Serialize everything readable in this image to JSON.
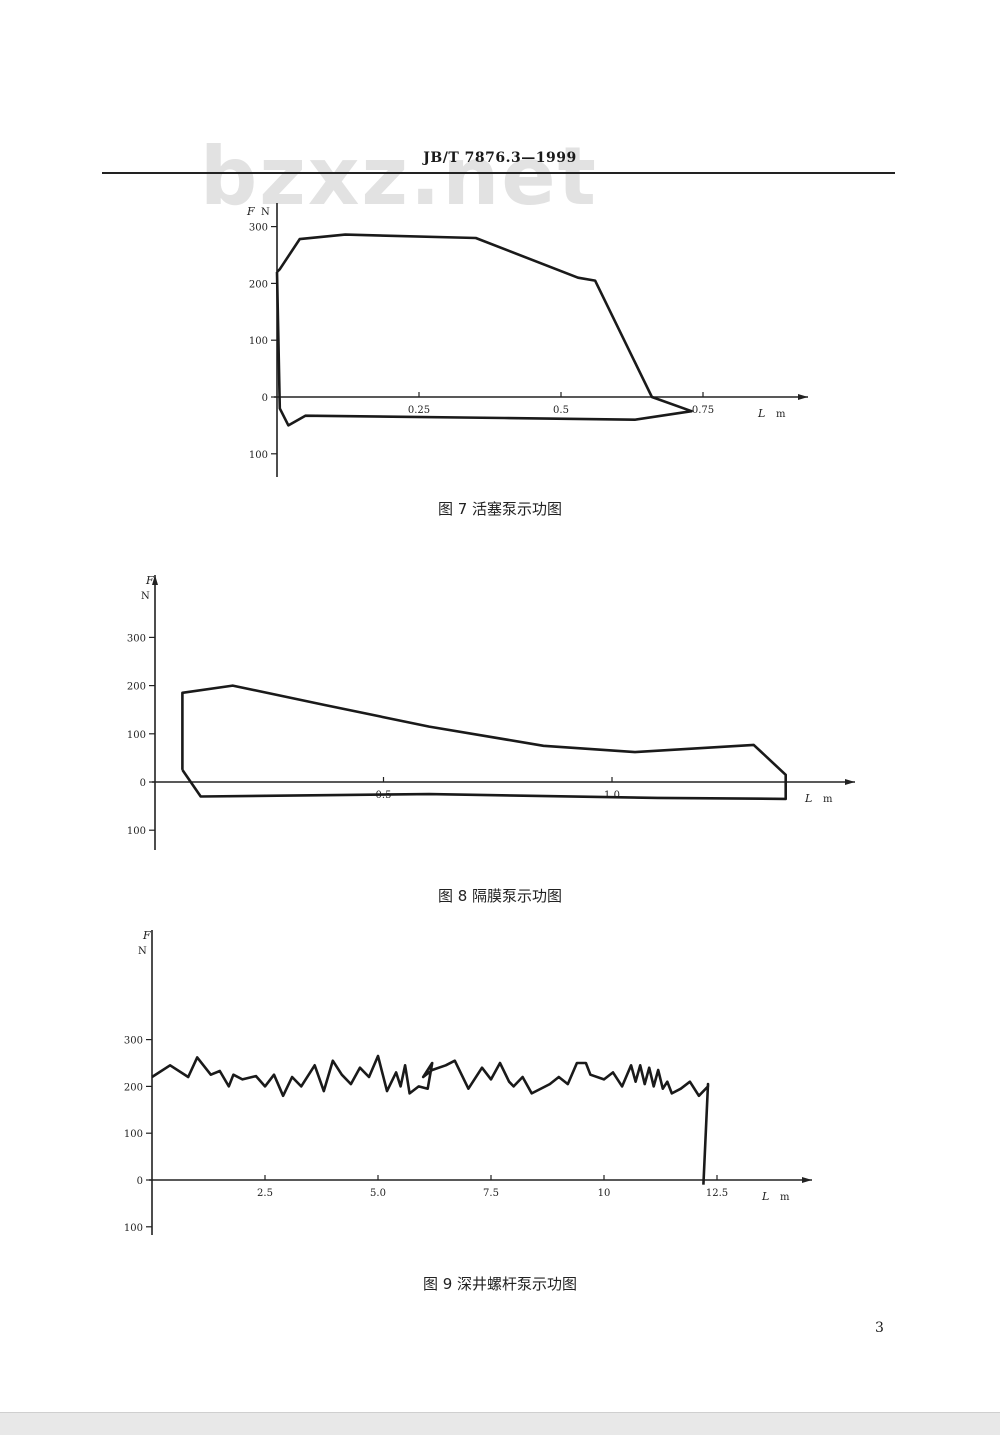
{
  "header": {
    "standard_code": "JB/T  7876.3—1999",
    "watermark": "bzxz.net"
  },
  "page_number": "3",
  "figures": [
    {
      "caption": "图 7   活塞泵示功图",
      "chart_data": {
        "type": "line",
        "xlabel": "L",
        "xunit": "m",
        "ylabel": "F",
        "yunit": "N",
        "xticks": [
          0.25,
          0.5,
          0.75
        ],
        "xtick_labels": [
          "0.25",
          "0.5",
          "0.75"
        ],
        "yticks": [
          300,
          200,
          100,
          0,
          -100
        ],
        "ytick_labels": [
          "300",
          "200",
          "100",
          "0",
          "100"
        ],
        "xlim": [
          0,
          0.94
        ],
        "ylim": [
          -140,
          340
        ],
        "series": [
          {
            "x": [
              0,
              0.005,
              0.04,
              0.12,
              0.35,
              0.53,
              0.56,
              0.66,
              0.73,
              0.63,
              0.4,
              0.05,
              0.02,
              0.005,
              0
            ],
            "y": [
              220,
              225,
              278,
              286,
              280,
              210,
              205,
              0,
              -25,
              -40,
              -37,
              -33,
              -50,
              -20,
              220
            ]
          }
        ]
      }
    },
    {
      "caption": "图 8   隔膜泵示功图",
      "chart_data": {
        "type": "line",
        "xlabel": "L",
        "xunit": "m",
        "ylabel": "F",
        "yunit": "N",
        "xticks": [
          0.5,
          1.0
        ],
        "xtick_labels": [
          "0.5",
          "1.0"
        ],
        "yticks": [
          300,
          200,
          100,
          0,
          -100
        ],
        "ytick_labels": [
          "300",
          "200",
          "100",
          "0",
          "100"
        ],
        "xlim": [
          0,
          1.53
        ],
        "ylim": [
          -140,
          430
        ],
        "series": [
          {
            "x": [
              0.06,
              0.06,
              0.17,
              0.37,
              0.6,
              0.85,
              1.05,
              1.31,
              1.38,
              1.38,
              1.1,
              0.6,
              0.1,
              0.06
            ],
            "y": [
              25,
              185,
              200,
              160,
              115,
              75,
              62,
              77,
              15,
              -35,
              -33,
              -25,
              -30,
              25
            ]
          }
        ]
      }
    },
    {
      "caption": "图 9   深井螺杆泵示功图",
      "chart_data": {
        "type": "line",
        "xlabel": "L",
        "xunit": "m",
        "ylabel": "F",
        "yunit": "N",
        "xticks": [
          2.5,
          5.0,
          7.5,
          10,
          12.5
        ],
        "xtick_labels": [
          "2.5",
          "5.0",
          "7.5",
          "10",
          "12.5"
        ],
        "yticks": [
          300,
          200,
          100,
          0,
          -100
        ],
        "ytick_labels": [
          "300",
          "200",
          "100",
          "0",
          "100"
        ],
        "xlim": [
          0,
          14.7
        ],
        "ylim": [
          -130,
          550
        ],
        "series": [
          {
            "x": [
              0,
              0.4,
              0.8,
              1.0,
              1.3,
              1.5,
              1.7,
              1.8,
              2.0,
              2.3,
              2.5,
              2.7,
              2.9,
              3.1,
              3.3,
              3.6,
              3.8,
              4.0,
              4.2,
              4.4,
              4.6,
              4.8,
              5.0,
              5.2,
              5.4,
              5.5,
              5.6,
              5.7,
              5.9,
              6.1,
              6.2,
              6.0,
              6.2,
              6.5,
              6.7,
              7.0,
              7.3,
              7.5,
              7.7,
              7.9,
              8.0,
              8.2,
              8.4,
              8.8,
              9.0,
              9.2,
              9.4,
              9.6,
              9.7,
              10.0,
              10.2,
              10.4,
              10.6,
              10.7,
              10.8,
              10.9,
              11.0,
              11.1,
              11.2,
              11.3,
              11.4,
              11.5,
              11.7,
              11.9,
              12.1,
              12.3,
              12.3,
              12.2
            ],
            "y": [
              220,
              245,
              220,
              262,
              225,
              233,
              200,
              225,
              215,
              222,
              200,
              225,
              180,
              220,
              200,
              245,
              190,
              255,
              225,
              205,
              240,
              220,
              265,
              190,
              230,
              200,
              245,
              185,
              200,
              195,
              250,
              220,
              235,
              245,
              255,
              195,
              240,
              215,
              250,
              210,
              200,
              220,
              185,
              205,
              220,
              205,
              250,
              250,
              225,
              215,
              230,
              200,
              245,
              210,
              245,
              205,
              240,
              200,
              235,
              195,
              210,
              185,
              195,
              210,
              180,
              200,
              205,
              -10
            ]
          }
        ]
      }
    }
  ]
}
